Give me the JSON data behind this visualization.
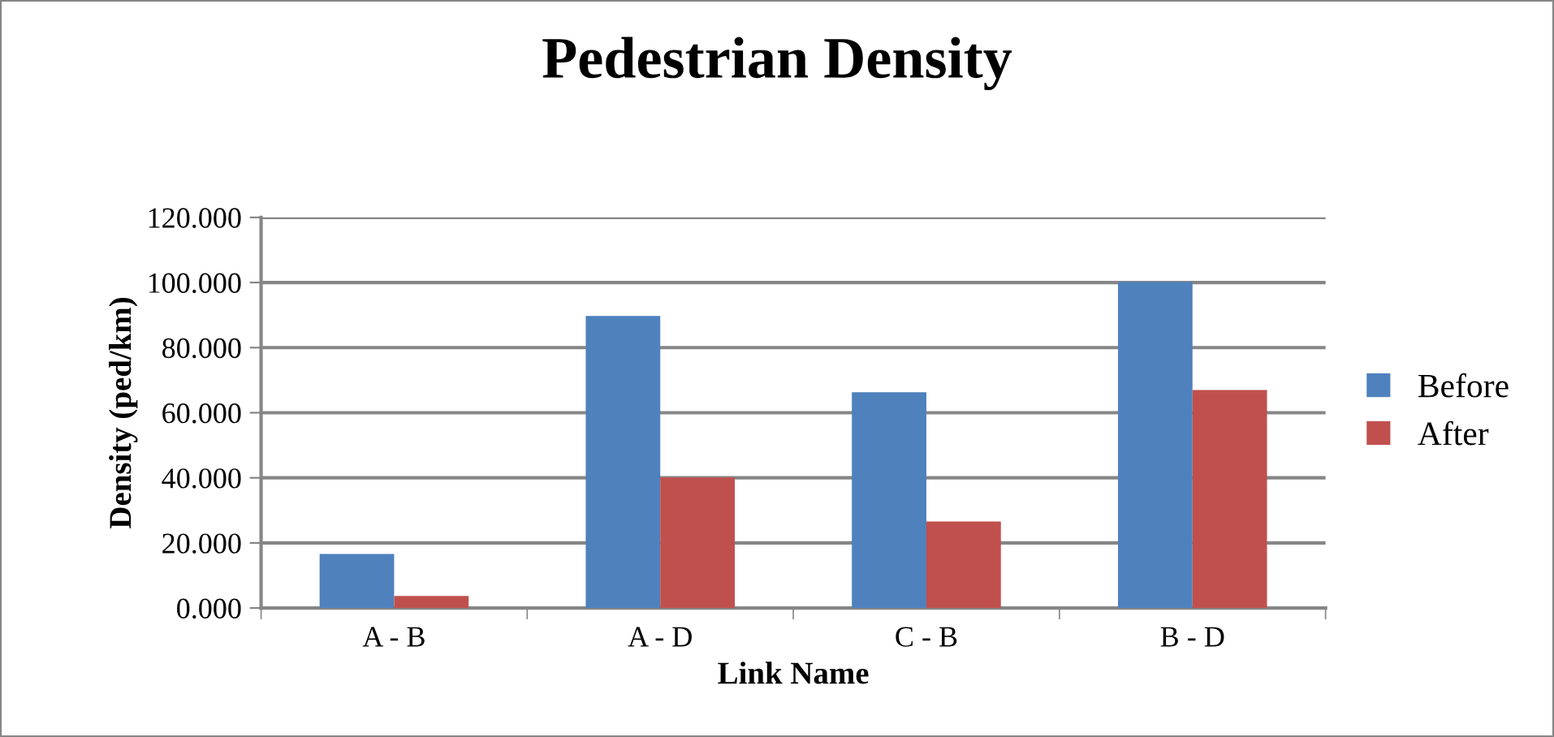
{
  "chart_data": {
    "type": "bar",
    "title": "Pedestrian Density",
    "xlabel": "Link Name",
    "ylabel": "Density (ped/km)",
    "categories": [
      "A - B",
      "A - D",
      "C - B",
      "B - D"
    ],
    "series": [
      {
        "name": "Before",
        "color": "#4f81bd",
        "values": [
          16.6,
          89.7,
          66.3,
          100.2
        ]
      },
      {
        "name": "After",
        "color": "#c0504d",
        "values": [
          3.7,
          40.1,
          26.6,
          67.0
        ]
      }
    ],
    "ylim": [
      0,
      120
    ],
    "yticks": [
      {
        "value": 0,
        "label": "0.000"
      },
      {
        "value": 20,
        "label": "20.000"
      },
      {
        "value": 40,
        "label": "40.000"
      },
      {
        "value": 60,
        "label": "60.000"
      },
      {
        "value": 80,
        "label": "80.000"
      },
      {
        "value": 100,
        "label": "100.000"
      },
      {
        "value": 120,
        "label": "120.000"
      }
    ],
    "grid": "y",
    "legend": "right"
  }
}
